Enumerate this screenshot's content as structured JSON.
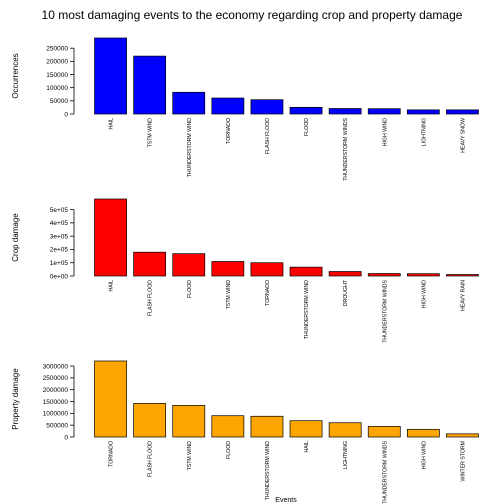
{
  "title": "10 most damaging events to the economy regarding crop and property damage",
  "chart_data": [
    {
      "type": "bar",
      "color": "#0000ff",
      "ylabel": "Occurrences",
      "ylim": [
        0,
        288661
      ],
      "yticks": [
        0,
        50000,
        100000,
        150000,
        200000,
        250000
      ],
      "ytick_labels": [
        "0",
        "50000",
        "100000",
        "150000",
        "200000",
        "250000"
      ],
      "categories": [
        "HAIL",
        "TSTM WIND",
        "THUNDERSTORM WIND",
        "TORNADO",
        "FLASH FLOOD",
        "FLOOD",
        "THUNDERSTORM WINDS",
        "HIGH WIND",
        "LIGHTNING",
        "HEAVY SNOW"
      ],
      "values": [
        288661,
        219940,
        82563,
        60652,
        54277,
        25326,
        20843,
        20212,
        15754,
        15708
      ]
    },
    {
      "type": "bar",
      "color": "#ff0000",
      "ylabel": "Crop damage",
      "ylim": [
        0,
        579596
      ],
      "yticks": [
        0,
        100000,
        200000,
        300000,
        400000,
        500000
      ],
      "ytick_labels": [
        "0e+00",
        "1e+05",
        "2e+05",
        "3e+05",
        "4e+05",
        "5e+05"
      ],
      "categories": [
        "HAIL",
        "FLASH FLOOD",
        "FLOOD",
        "TSTM WIND",
        "TORNADO",
        "THUNDERSTORM WIND",
        "DROUGHT",
        "THUNDERSTORM WINDS",
        "HIGH WIND",
        "HEAVY RAIN"
      ],
      "values": [
        579596,
        179200,
        168038,
        109203,
        100019,
        66791,
        33899,
        18685,
        17283,
        11123
      ]
    },
    {
      "type": "bar",
      "color": "#ffa500",
      "ylabel": "Property damage",
      "xlabel": "Events",
      "ylim": [
        0,
        3212258
      ],
      "yticks": [
        0,
        500000,
        1000000,
        1500000,
        2000000,
        2500000,
        3000000
      ],
      "ytick_labels": [
        "0",
        "500000",
        "1000000",
        "1500000",
        "2000000",
        "2500000",
        "3000000"
      ],
      "categories": [
        "TORNADO",
        "FLASH FLOOD",
        "TSTM WIND",
        "FLOOD",
        "THUNDERSTORM WIND",
        "HAIL",
        "LIGHTNING",
        "THUNDERSTORM WINDS",
        "HIGH WIND",
        "WINTER STORM"
      ],
      "values": [
        3212258,
        1420125,
        1335966,
        899938,
        876844,
        688693,
        603352,
        446293,
        324732,
        132721
      ]
    }
  ]
}
